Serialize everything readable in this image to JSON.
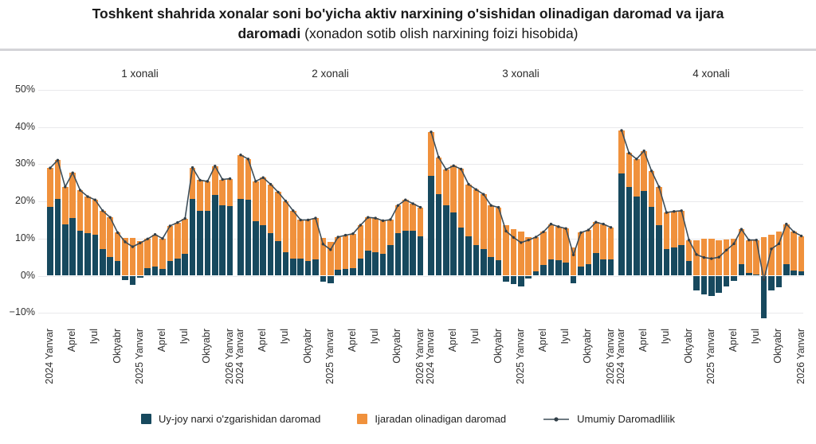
{
  "title": {
    "bold_line1": "Toshkent shahrida xonalar soni bo'yicha aktiv narxining o'sishidan olinadigan daromad va ijara",
    "bold_line2": "daromadi",
    "normal_line2": " (xonadon sotib olish narxining foizi hisobida)"
  },
  "colors": {
    "price_bar": "#17495E",
    "rent_bar": "#F0913C",
    "total_line": "#3E4E59",
    "line_marker": "#313E47",
    "gridline": "#E9E9EC",
    "divider": "#D4D4D8",
    "text": "#2F2F2F"
  },
  "y_axis": {
    "ticks": [
      "50%",
      "40%",
      "30%",
      "20%",
      "10%",
      "0%",
      "−10%"
    ],
    "values": [
      50,
      40,
      30,
      20,
      10,
      0,
      -10
    ]
  },
  "x_ticks": {
    "indices": [
      0,
      3,
      6,
      9,
      12,
      15,
      18,
      21,
      24
    ],
    "labels": [
      "2024  Yanvar",
      "Aprel",
      "Iyul",
      "Oktyabr",
      "2025  Yanvar",
      "Aprel",
      "Iyul",
      "Oktyabr",
      "2026  Yanvar"
    ]
  },
  "legend": [
    {
      "label": "Uy-joy narxi o'zgarishidan daromad",
      "type": "square",
      "color": "#17495E"
    },
    {
      "label": "Ijaradan olinadigan daromad",
      "type": "square",
      "color": "#F0913C"
    },
    {
      "label": "Umumiy Daromadlilik",
      "type": "line-marker",
      "color": "#3E4E59"
    }
  ],
  "chart_data": {
    "type": "bar",
    "subtype": "stacked-bars-with-total-line",
    "unit": "% of apartment purchase price",
    "ylim": [
      -15,
      50
    ],
    "grid": true,
    "categories": [
      "2024-01",
      "2024-02",
      "2024-03",
      "2024-04",
      "2024-05",
      "2024-06",
      "2024-07",
      "2024-08",
      "2024-09",
      "2024-10",
      "2024-11",
      "2024-12",
      "2025-01",
      "2025-02",
      "2025-03",
      "2025-04",
      "2025-05",
      "2025-06",
      "2025-07",
      "2025-08",
      "2025-09",
      "2025-10",
      "2025-11",
      "2025-12",
      "2026-01"
    ],
    "series_labels": {
      "price": "Uy-joy narxi o'zgarishidan daromad",
      "rent": "Ijaradan olinadigan daromad",
      "total": "Umumiy Daromadlilik"
    },
    "panels": [
      {
        "title": "1 xonali",
        "price": [
          18.6,
          20.7,
          13.9,
          15.6,
          12.1,
          11.4,
          11.0,
          7.1,
          5.0,
          3.9,
          -1.1,
          -2.4,
          -0.5,
          2.0,
          2.5,
          1.8,
          3.9,
          4.6,
          5.9,
          20.7,
          17.5,
          17.4,
          21.8,
          18.9,
          18.7
        ],
        "rent": [
          10.4,
          10.4,
          10.0,
          12.1,
          10.9,
          9.9,
          9.4,
          10.4,
          10.7,
          7.7,
          10.2,
          10.2,
          9.3,
          7.9,
          8.6,
          8.2,
          9.5,
          9.7,
          9.5,
          8.4,
          8.2,
          8.0,
          7.7,
          7.0,
          7.4
        ]
      },
      {
        "title": "2 xonali",
        "price": [
          20.7,
          20.4,
          14.6,
          13.6,
          11.4,
          9.4,
          6.3,
          4.6,
          4.5,
          3.9,
          4.3,
          -1.6,
          -2.1,
          1.6,
          1.8,
          2.1,
          4.6,
          6.8,
          6.3,
          5.9,
          8.2,
          11.4,
          12.1,
          12.0,
          10.7
        ],
        "rent": [
          11.8,
          11.0,
          10.8,
          12.8,
          13.2,
          13.1,
          13.8,
          12.9,
          10.5,
          11.1,
          11.2,
          10.1,
          9.1,
          8.8,
          9.1,
          9.2,
          9.0,
          8.9,
          9.2,
          8.9,
          6.9,
          7.5,
          8.3,
          7.4,
          7.7
        ]
      },
      {
        "title": "3 xonali",
        "price": [
          26.8,
          21.9,
          18.9,
          17.1,
          12.9,
          10.7,
          8.2,
          7.1,
          5.0,
          4.1,
          -1.6,
          -2.3,
          -2.9,
          -0.7,
          1.2,
          2.9,
          4.4,
          4.1,
          3.6,
          -2.0,
          2.5,
          3.2,
          6.1,
          4.4,
          4.3
        ],
        "rent": [
          11.9,
          10.0,
          9.7,
          12.5,
          15.8,
          13.9,
          15.0,
          14.8,
          13.9,
          14.3,
          13.6,
          12.6,
          11.8,
          10.3,
          9.2,
          8.9,
          9.5,
          9.1,
          9.1,
          7.6,
          9.1,
          9.1,
          8.3,
          9.5,
          8.7
        ]
      },
      {
        "title": "4 xonali",
        "price": [
          27.5,
          23.9,
          21.4,
          22.7,
          18.6,
          13.6,
          7.1,
          7.5,
          8.2,
          3.9,
          -3.9,
          -5.0,
          -5.4,
          -4.6,
          -2.9,
          -1.4,
          3.2,
          0.7,
          0.4,
          -11.5,
          -3.9,
          -3.2,
          3.2,
          1.4,
          1.1
        ],
        "rent": [
          11.6,
          9.1,
          10.0,
          10.9,
          9.6,
          10.3,
          9.9,
          9.8,
          9.3,
          5.7,
          9.6,
          9.9,
          10.0,
          9.6,
          9.8,
          10.0,
          9.3,
          8.9,
          9.2,
          10.4,
          11.1,
          11.8,
          10.7,
          10.4,
          9.6
        ]
      }
    ]
  }
}
